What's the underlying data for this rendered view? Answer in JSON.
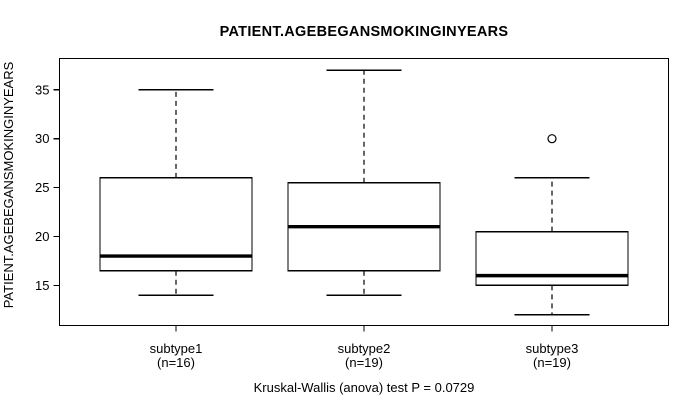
{
  "figure": {
    "background_color": "#ffffff",
    "line_color": "#000000"
  },
  "chart_data": {
    "type": "boxplot",
    "title": "PATIENT.AGEBEGANSMOKINGINYEARS",
    "ylabel": "PATIENT.AGEBEGANSMOKINGINYEARS",
    "xlabel": "",
    "caption": "Kruskal-Wallis (anova) test P = 0.0729",
    "kruskal_wallis_p": 0.0729,
    "ylim": [
      10.9,
      38.2
    ],
    "yticks": [
      15,
      20,
      25,
      30,
      35
    ],
    "grid": false,
    "legend": null,
    "categories": [
      "subtype1",
      "subtype2",
      "subtype3"
    ],
    "groups": [
      {
        "label": "subtype1",
        "n_label": "(n=16)",
        "n": 16,
        "whisker_low": 14,
        "q1": 16.5,
        "median": 18,
        "q3": 26,
        "whisker_high": 35,
        "outliers": []
      },
      {
        "label": "subtype2",
        "n_label": "(n=19)",
        "n": 19,
        "whisker_low": 14,
        "q1": 16.5,
        "median": 21,
        "q3": 25.5,
        "whisker_high": 37,
        "outliers": []
      },
      {
        "label": "subtype3",
        "n_label": "(n=19)",
        "n": 19,
        "whisker_low": 12,
        "q1": 15,
        "median": 16,
        "q3": 20.5,
        "whisker_high": 26,
        "outliers": [
          30
        ]
      }
    ]
  }
}
